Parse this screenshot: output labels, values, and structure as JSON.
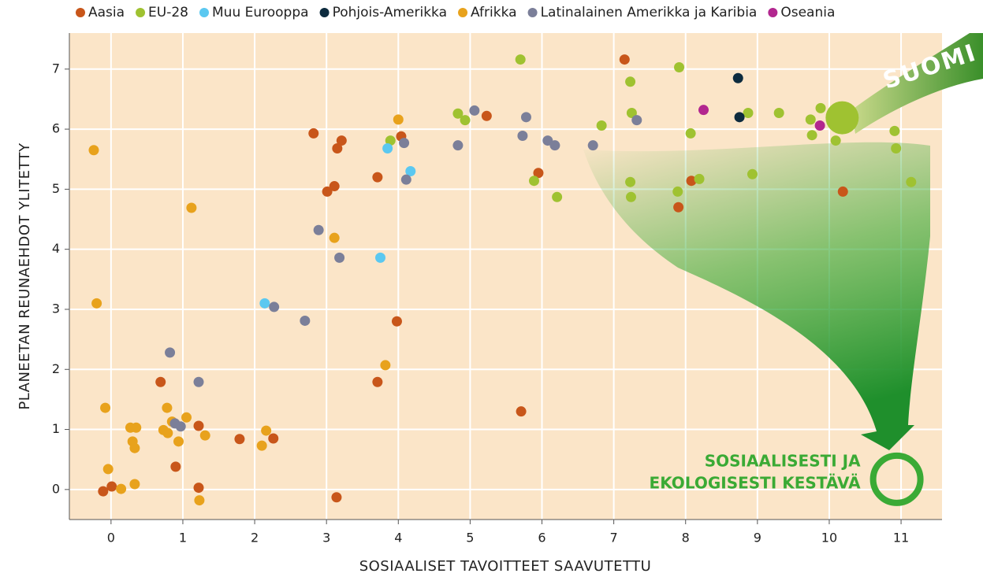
{
  "chart_data": {
    "type": "scatter",
    "xlabel": "SOSIAALISET TAVOITTEET SAAVUTETTU",
    "ylabel": "PLANEETAN REUNAEHDOT YLITETTY",
    "xlim": [
      -0.58,
      11.57
    ],
    "ylim": [
      -0.5,
      7.6
    ],
    "xticks": [
      0,
      1,
      2,
      3,
      4,
      5,
      6,
      7,
      8,
      9,
      10,
      11
    ],
    "yticks": [
      0,
      1,
      2,
      3,
      4,
      5,
      6,
      7
    ],
    "grid": true,
    "legend": "top",
    "series": [
      {
        "name": "Aasia",
        "color": "#c8561a",
        "x": [
          7.15,
          2.82,
          3.21,
          3.15,
          3.11,
          3.01,
          3.71,
          4.04,
          5.23,
          5.95,
          8.08,
          7.9,
          10.19,
          3.98,
          3.71,
          5.71,
          0.69,
          1.22,
          1.79,
          2.26,
          0.9,
          1.22,
          3.14,
          0.01,
          -0.11
        ],
        "y": [
          7.16,
          5.93,
          5.81,
          5.68,
          5.05,
          4.96,
          5.2,
          5.88,
          6.22,
          5.27,
          5.14,
          4.7,
          4.96,
          2.8,
          1.79,
          1.3,
          1.79,
          1.06,
          0.84,
          0.85,
          0.38,
          0.03,
          -0.13,
          0.05,
          -0.03
        ]
      },
      {
        "name": "EU-28",
        "color": "#9fc231",
        "x": [
          5.7,
          7.91,
          7.23,
          7.25,
          4.83,
          4.93,
          6.83,
          8.87,
          9.3,
          9.88,
          9.74,
          9.76,
          10.09,
          10.91,
          10.93,
          11.14,
          8.93,
          8.07,
          8.19,
          7.89,
          7.23,
          7.24,
          5.89,
          6.21,
          3.89
        ],
        "y": [
          7.16,
          7.03,
          6.79,
          6.27,
          6.26,
          6.15,
          6.06,
          6.27,
          6.27,
          6.35,
          6.16,
          5.9,
          5.81,
          5.97,
          5.68,
          5.12,
          5.25,
          5.93,
          5.17,
          4.96,
          5.12,
          4.87,
          5.14,
          4.87,
          5.81
        ]
      },
      {
        "name": "Muu Eurooppa",
        "color": "#5bc8f0",
        "x": [
          3.85,
          4.17,
          3.75,
          2.14
        ],
        "y": [
          5.68,
          5.3,
          3.86,
          3.1
        ]
      },
      {
        "name": "Pohjois-Amerikka",
        "color": "#0d2b3e",
        "x": [
          8.73,
          8.75
        ],
        "y": [
          6.85,
          6.2
        ]
      },
      {
        "name": "Afrikka",
        "color": "#e8a21c",
        "x": [
          -0.24,
          -0.2,
          1.12,
          3.11,
          4.0,
          3.82,
          -0.08,
          -0.04,
          0.14,
          0.33,
          0.27,
          0.35,
          0.3,
          0.33,
          0.78,
          0.73,
          0.79,
          0.85,
          1.05,
          0.94,
          1.31,
          1.23,
          2.16,
          2.1
        ],
        "y": [
          5.65,
          3.1,
          4.69,
          4.19,
          6.16,
          2.07,
          1.36,
          0.34,
          0.01,
          0.09,
          1.03,
          1.03,
          0.8,
          0.69,
          1.36,
          0.99,
          0.94,
          1.13,
          1.2,
          0.8,
          0.9,
          -0.18,
          0.98,
          0.73
        ]
      },
      {
        "name": "Latinalainen Amerikka ja Karibia",
        "color": "#7b7f99",
        "x": [
          5.06,
          5.78,
          7.32,
          5.73,
          6.08,
          6.18,
          6.71,
          4.83,
          4.08,
          4.11,
          2.89,
          3.18,
          2.27,
          2.7,
          0.82,
          1.22,
          0.89,
          0.97
        ],
        "y": [
          6.31,
          6.2,
          6.15,
          5.89,
          5.81,
          5.73,
          5.73,
          5.73,
          5.77,
          5.16,
          4.32,
          3.86,
          3.04,
          2.81,
          2.28,
          1.79,
          1.1,
          1.05
        ]
      },
      {
        "name": "Oseania",
        "color": "#b2278f",
        "x": [
          8.25,
          9.87
        ],
        "y": [
          6.32,
          6.06
        ]
      }
    ],
    "highlight": {
      "label": "SUOMI",
      "x": 10.18,
      "y": 6.19,
      "color": "#9fc231"
    },
    "target": {
      "label": [
        "SOSIAALISESTI JA",
        "EKOLOGISESTI KESTÄVÄ"
      ],
      "x": 10.94,
      "y": 0.17,
      "color": "#3aaa35"
    }
  }
}
